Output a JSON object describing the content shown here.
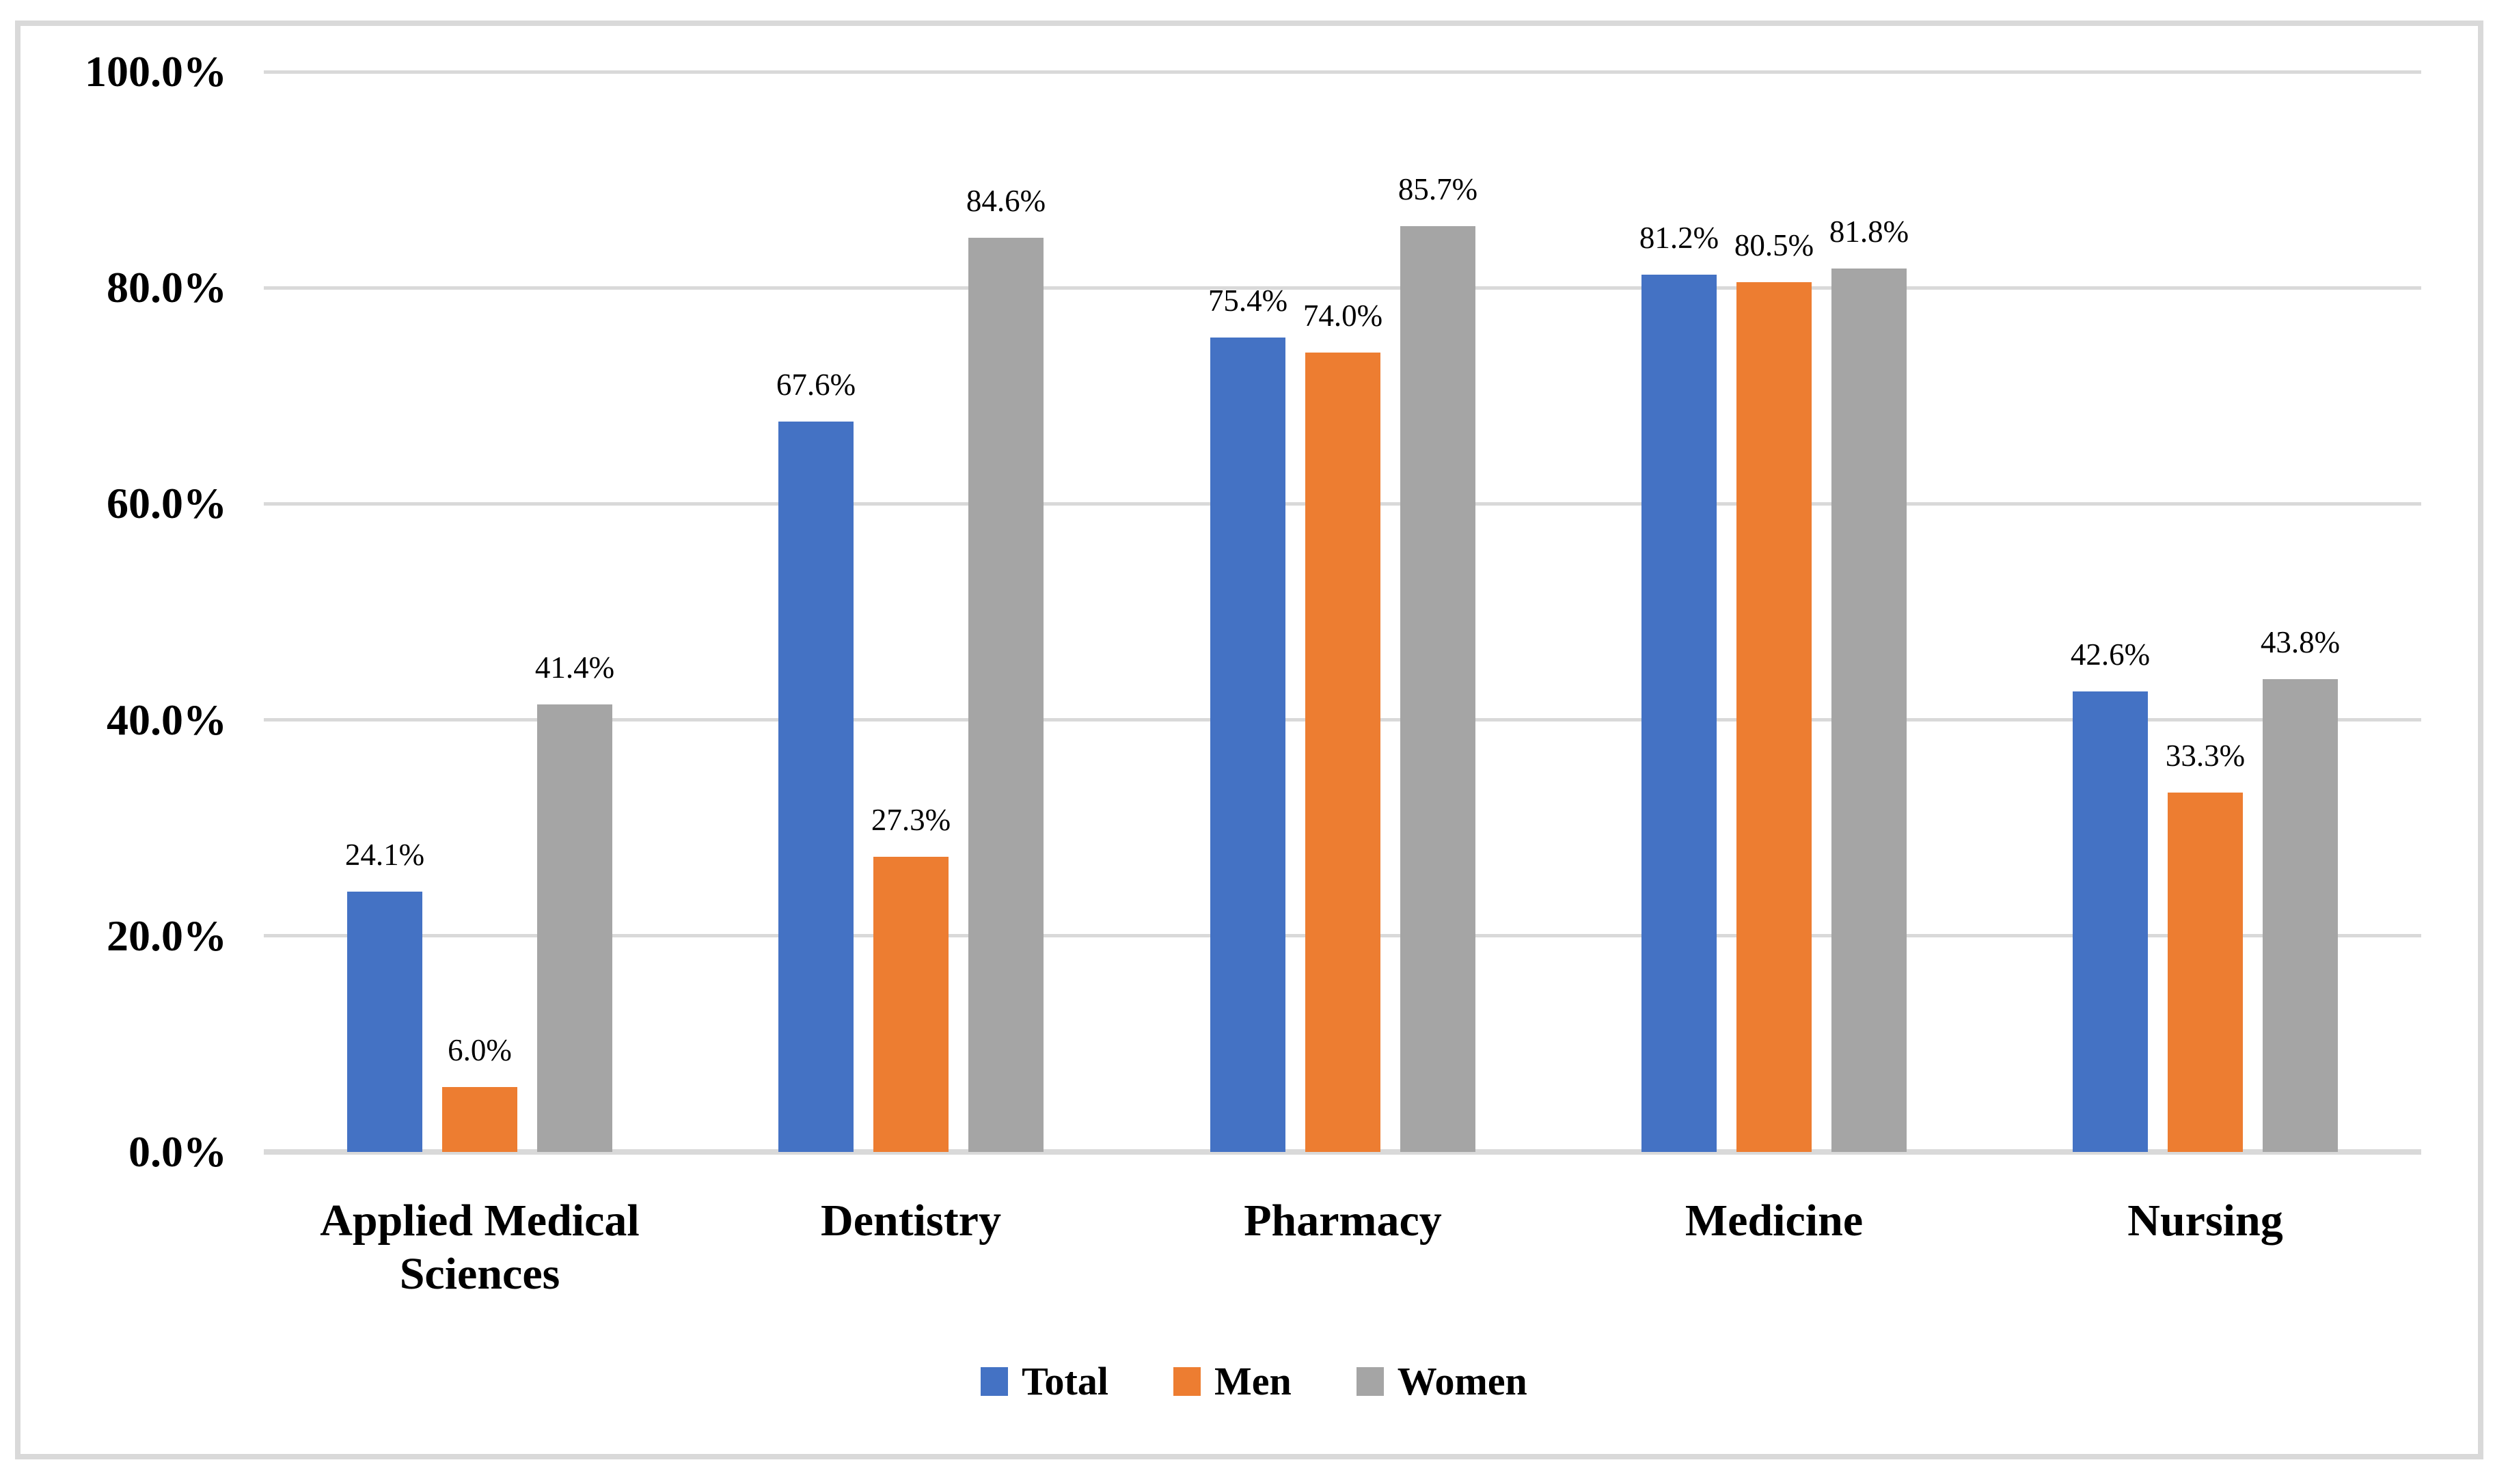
{
  "chart_data": {
    "type": "bar",
    "title": "",
    "categories": [
      "Applied Medical Sciences",
      "Dentistry",
      "Pharmacy",
      "Medicine",
      "Nursing"
    ],
    "series": [
      {
        "name": "Total",
        "color": "#4472C4",
        "values": [
          24.1,
          67.6,
          75.4,
          81.2,
          42.6
        ],
        "labels": [
          "24.1%",
          "67.6%",
          "75.4%",
          "81.2%",
          "42.6%"
        ]
      },
      {
        "name": "Men",
        "color": "#ED7D31",
        "values": [
          6.0,
          27.3,
          74.0,
          80.5,
          33.3
        ],
        "labels": [
          "6.0%",
          "27.3%",
          "74.0%",
          "80.5%",
          "33.3%"
        ]
      },
      {
        "name": "Women",
        "color": "#A5A5A5",
        "values": [
          41.4,
          84.6,
          85.7,
          81.8,
          43.8
        ],
        "labels": [
          "41.4%",
          "84.6%",
          "85.7%",
          "81.8%",
          "43.8%"
        ]
      }
    ],
    "y_axis": {
      "min": 0,
      "max": 100,
      "step": 20,
      "tick_labels": [
        "0.0%",
        "20.0%",
        "40.0%",
        "60.0%",
        "80.0%",
        "100.0%"
      ]
    },
    "xlabel": "",
    "ylabel": "",
    "grid": true,
    "legend": {
      "position": "bottom",
      "entries": [
        "Total",
        "Men",
        "Women"
      ]
    },
    "colors": {
      "grid": "#D9D9D9",
      "axis": "#D9D9D9",
      "frame_border": "#D9D9D9",
      "text": "#000000",
      "background": "#FFFFFF"
    }
  }
}
